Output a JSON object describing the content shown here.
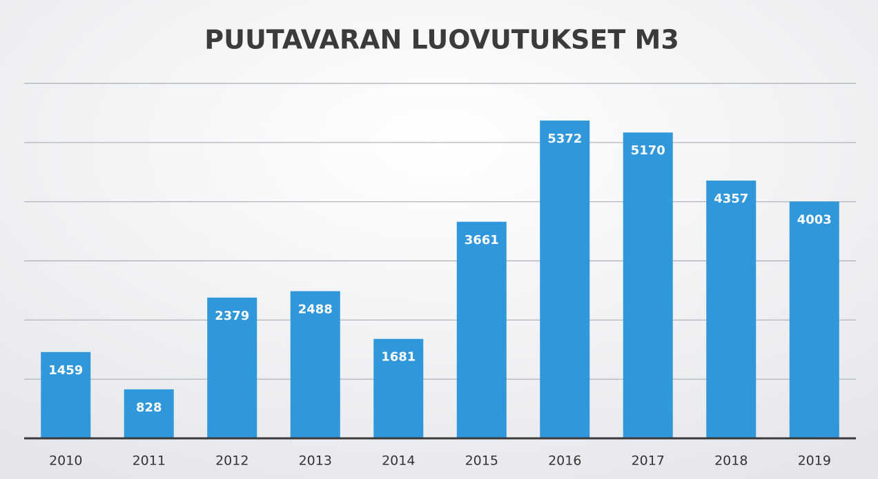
{
  "chart_data": {
    "type": "bar",
    "title": "PUUTAVARAN LUOVUTUKSET M3",
    "categories": [
      "2010",
      "2011",
      "2012",
      "2013",
      "2014",
      "2015",
      "2016",
      "2017",
      "2018",
      "2019"
    ],
    "values": [
      1459,
      828,
      2379,
      2488,
      1681,
      3661,
      5372,
      5170,
      4357,
      4003
    ],
    "color": "#2f97da",
    "ylim": [
      0,
      6000
    ],
    "yticks": [
      0,
      1000,
      2000,
      3000,
      4000,
      5000,
      6000
    ],
    "grid": true
  }
}
